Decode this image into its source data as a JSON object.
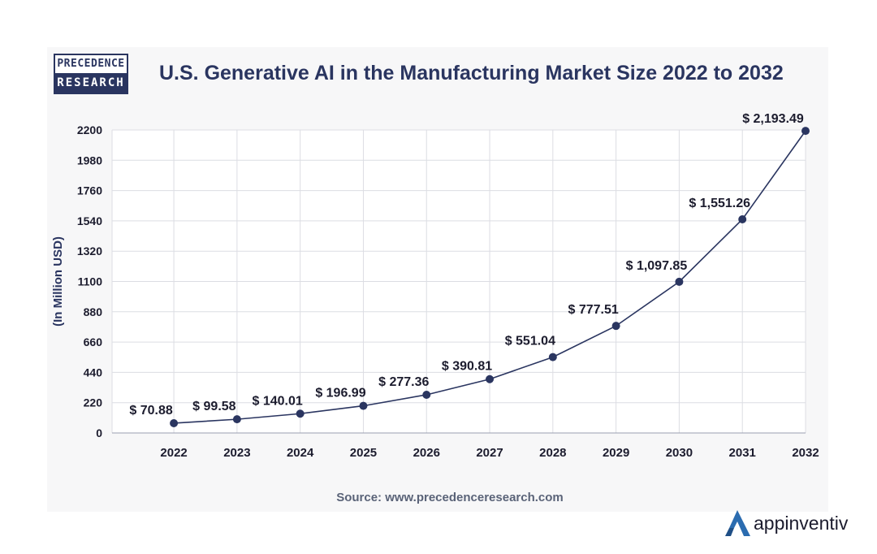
{
  "logo": {
    "line1": "PRECEDENCE",
    "line2": "RESEARCH"
  },
  "brand": {
    "name": "appinventiv"
  },
  "source": "Source: www.precedenceresearch.com",
  "colors": {
    "line": "#2a3560",
    "grid": "#dcdde3",
    "text": "#1c1c2e",
    "accent": "#2b6cb0"
  },
  "chart_data": {
    "type": "line",
    "title": "U.S. Generative AI in the Manufacturing Market Size 2022 to 2032",
    "xlabel": "",
    "ylabel": "(In Million USD)",
    "ylim": [
      0,
      2200
    ],
    "yticks": [
      0,
      220,
      440,
      660,
      880,
      1100,
      1320,
      1540,
      1760,
      1980,
      2200
    ],
    "categories": [
      "2022",
      "2023",
      "2024",
      "2025",
      "2026",
      "2027",
      "2028",
      "2029",
      "2030",
      "2031",
      "2032"
    ],
    "series": [
      {
        "name": "Market Size",
        "values": [
          70.88,
          99.58,
          140.01,
          196.99,
          277.36,
          390.81,
          551.04,
          777.51,
          1097.85,
          1551.26,
          2193.49
        ],
        "labels": [
          "$ 70.88",
          "$ 99.58",
          "$ 140.01",
          "$ 196.99",
          "$ 277.36",
          "$ 390.81",
          "$ 551.04",
          "$ 777.51",
          "$ 1,097.85",
          "$ 1,551.26",
          "$ 2,193.49"
        ]
      }
    ],
    "grid": true
  }
}
